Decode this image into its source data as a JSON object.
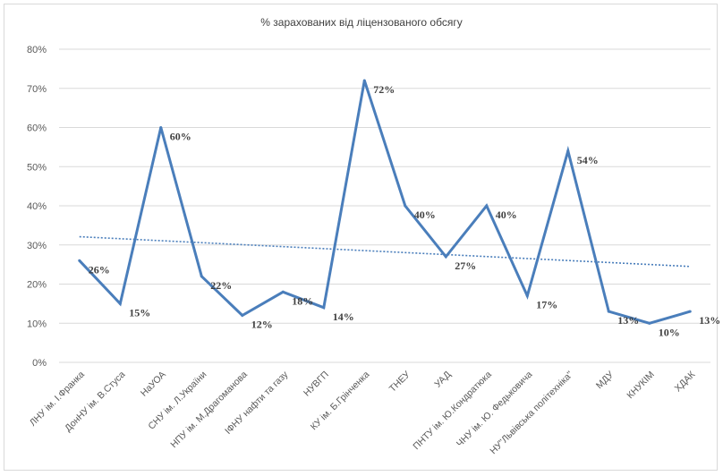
{
  "chart_data": {
    "type": "line",
    "title": "% зарахованих від ліцензованого обсягу",
    "categories": [
      "ЛНУ ім. І.Франка",
      "ДонНУ ім. В.Стуса",
      "НаУОА",
      "СНУ ім. Л.України",
      "НПУ ім. М.Драгоманова",
      "ІФНУ нафти та газу",
      "НУВГП",
      "КУ ім. Б.Грінченка",
      "ТНЕУ",
      "УАД",
      "ПНТУ ім. Ю.Кондратюка",
      "ЧНУ ім. Ю. Федьковича",
      "НУ\"Львівська політехніка\"",
      "МДУ",
      "КНУКІМ",
      "ХДАК"
    ],
    "series": [
      {
        "values": [
          26,
          15,
          60,
          22,
          12,
          18,
          14,
          72,
          40,
          27,
          40,
          17,
          54,
          13,
          10,
          13
        ],
        "labels": [
          "26%",
          "15%",
          "60%",
          "22%",
          "12%",
          "18%",
          "14%",
          "72%",
          "40%",
          "27%",
          "40%",
          "17%",
          "54%",
          "13%",
          "10%",
          "13%"
        ],
        "color": "#4a7ebb"
      }
    ],
    "trendline": {
      "type": "linear",
      "style": "dotted",
      "color": "#4a7ebb",
      "start": 32.1,
      "end": 24.5
    },
    "yticks": [
      "0%",
      "10%",
      "20%",
      "30%",
      "40%",
      "50%",
      "60%",
      "70%",
      "80%"
    ],
    "ylim": [
      0,
      80
    ],
    "grid": true,
    "legend": "none"
  }
}
